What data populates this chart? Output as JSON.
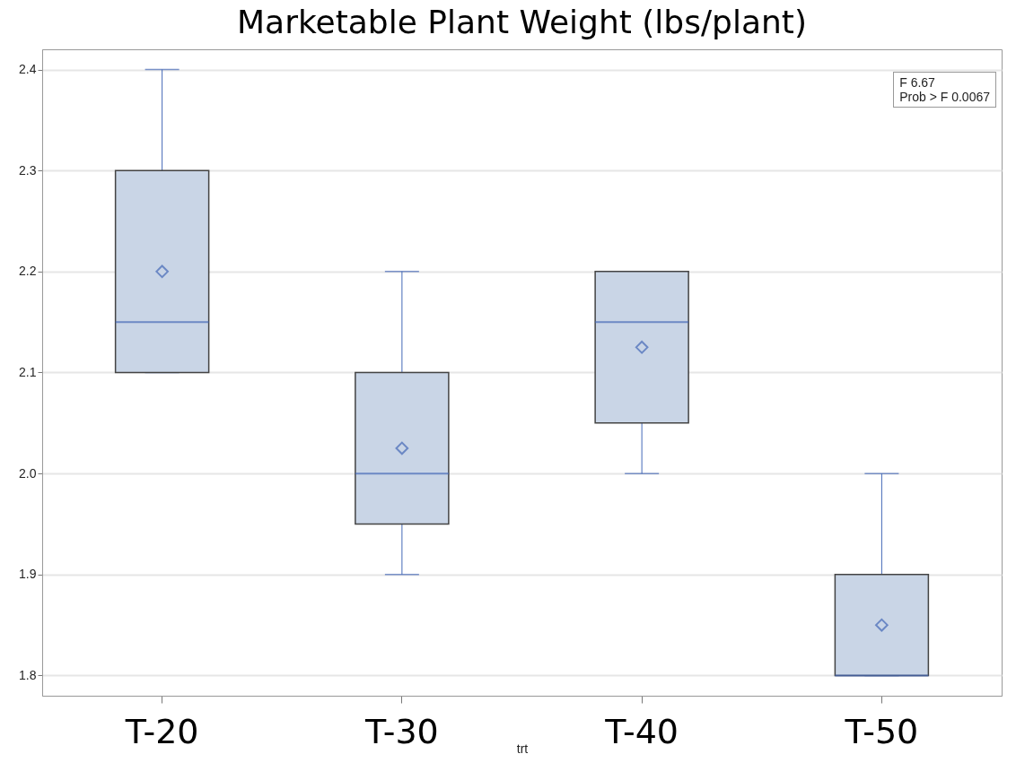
{
  "chart_data": {
    "type": "box",
    "title": "Marketable Plant Weight (lbs/plant)",
    "xlabel": "trt",
    "categories": [
      "T-20",
      "T-30",
      "T-40",
      "T-50"
    ],
    "boxes": [
      {
        "low": 2.1,
        "q1": 2.1,
        "median": 2.15,
        "q3": 2.3,
        "high": 2.4,
        "mean": 2.2
      },
      {
        "low": 1.9,
        "q1": 1.95,
        "median": 2.0,
        "q3": 2.1,
        "high": 2.2,
        "mean": 2.025
      },
      {
        "low": 2.0,
        "q1": 2.05,
        "median": 2.15,
        "q3": 2.2,
        "high": 2.2,
        "mean": 2.125
      },
      {
        "low": 1.8,
        "q1": 1.8,
        "median": 1.8,
        "q3": 1.9,
        "high": 2.0,
        "mean": 1.85
      }
    ],
    "color": "#4468b7",
    "colors": [
      "#c9d5e6",
      "#c9d5e6",
      "#c9d5e6",
      "#c9d5e6"
    ],
    "ylim": [
      1.78,
      2.42
    ],
    "yticks": [
      {
        "value": 1.8,
        "label": "1.8"
      },
      {
        "value": 1.9,
        "label": "1.9"
      },
      {
        "value": 2,
        "label": "2.0"
      },
      {
        "value": 2.1,
        "label": "2.1"
      },
      {
        "value": 2.2,
        "label": "2.2"
      },
      {
        "value": 2.3,
        "label": "2.3"
      },
      {
        "value": 2.4,
        "label": "2.4"
      }
    ],
    "grid": "y",
    "marker": "diamond",
    "annotations": [
      "F 6.67",
      "Prob > F 0.0067"
    ]
  }
}
